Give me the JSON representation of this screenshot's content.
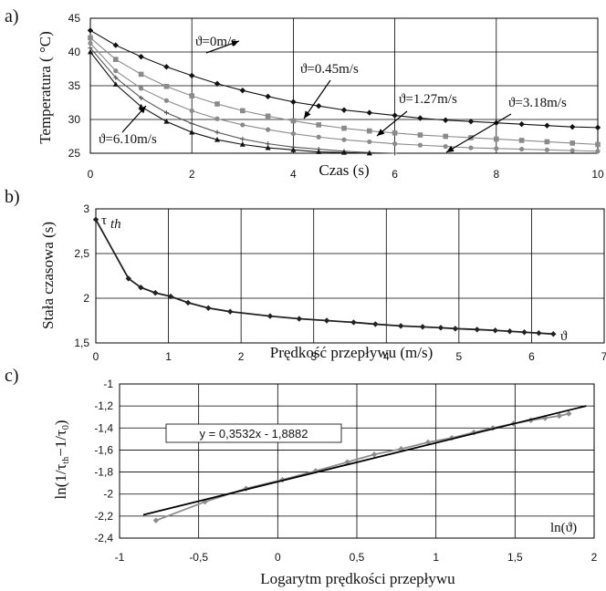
{
  "chart_data": [
    {
      "panel": "a)",
      "type": "line",
      "xlabel": "Czas (s)",
      "ylabel": "Temperatura ( °C)",
      "xlim": [
        0,
        10
      ],
      "ylim": [
        25,
        45
      ],
      "x_ticks": [
        "0",
        "2",
        "4",
        "6",
        "8",
        "10"
      ],
      "y_ticks": [
        "25",
        "30",
        "35",
        "40",
        "45"
      ],
      "grid": true,
      "series": [
        {
          "name": "ϑ=0m/s",
          "x": [
            0,
            0.5,
            1,
            1.5,
            2,
            2.5,
            3,
            3.5,
            4,
            4.5,
            5,
            5.5,
            6,
            6.5,
            7,
            7.5,
            8,
            8.5,
            9,
            9.5,
            10
          ],
          "y": [
            43.2,
            41.0,
            39.3,
            37.8,
            36.5,
            35.3,
            34.3,
            33.4,
            32.6,
            32.0,
            31.4,
            31.0,
            30.6,
            30.2,
            29.9,
            29.7,
            29.5,
            29.3,
            29.1,
            28.9,
            28.8
          ],
          "color": "#111111",
          "marker": "diamond"
        },
        {
          "name": "ϑ=0.45m/s",
          "x": [
            0,
            0.5,
            1,
            1.5,
            2,
            2.5,
            3,
            3.5,
            4,
            4.5,
            5,
            5.5,
            6,
            6.5,
            7,
            7.5,
            8,
            8.5,
            9,
            9.5,
            10
          ],
          "y": [
            42.1,
            38.9,
            36.7,
            34.9,
            33.5,
            32.3,
            31.3,
            30.5,
            29.8,
            29.2,
            28.7,
            28.3,
            28.0,
            27.7,
            27.5,
            27.3,
            27.1,
            26.9,
            26.7,
            26.5,
            26.3
          ],
          "color": "#8a8a8a",
          "marker": "square"
        },
        {
          "name": "ϑ=1.27m/s",
          "x": [
            0,
            0.5,
            1,
            1.5,
            2,
            2.5,
            3,
            3.5,
            4,
            4.5,
            5,
            5.5,
            6,
            6.5,
            7,
            7.5,
            8,
            8.5,
            9,
            9.5,
            10
          ],
          "y": [
            41.3,
            37.2,
            34.6,
            32.8,
            31.3,
            30.1,
            29.2,
            28.5,
            27.9,
            27.4,
            27.0,
            26.7,
            26.4,
            26.2,
            26.0,
            25.8,
            25.7,
            25.6,
            25.5,
            25.4,
            25.3
          ],
          "color": "#8a8a8a",
          "marker": "circle"
        },
        {
          "name": "ϑ=3.18m/s",
          "x": [
            0,
            0.5,
            1,
            1.5,
            2,
            2.5,
            3,
            3.5,
            4,
            4.5,
            5,
            5.5,
            6
          ],
          "y": [
            40.6,
            36.2,
            33.2,
            31.0,
            29.4,
            28.1,
            27.1,
            26.4,
            25.9,
            25.6,
            25.3,
            25.1,
            25.0
          ],
          "color": "#555555",
          "marker": "plus"
        },
        {
          "name": "ϑ=6.10m/s",
          "x": [
            0,
            0.5,
            1,
            1.5,
            2,
            2.5,
            3,
            3.5,
            4,
            4.5,
            5,
            5.5
          ],
          "y": [
            40.0,
            35.2,
            31.9,
            29.7,
            28.1,
            27.0,
            26.3,
            25.8,
            25.5,
            25.2,
            25.1,
            25.0
          ],
          "color": "#111111",
          "marker": "triangle"
        }
      ]
    },
    {
      "panel": "b)",
      "type": "line",
      "xlabel": "Prędkość przepływu (m/s)",
      "ylabel": "Stała czasowa (s)",
      "xlim": [
        0,
        7
      ],
      "ylim": [
        1.5,
        3
      ],
      "x_ticks": [
        "0",
        "1",
        "2",
        "3",
        "4",
        "5",
        "6",
        "7"
      ],
      "y_ticks": [
        "1,5",
        "2",
        "2,5",
        "3"
      ],
      "grid": true,
      "annotations": [
        "τ",
        "th",
        "ϑ"
      ],
      "series": [
        {
          "x": [
            0,
            0.45,
            0.62,
            0.82,
            1.03,
            1.27,
            1.55,
            1.85,
            2.4,
            2.8,
            3.18,
            3.55,
            3.85,
            4.2,
            4.5,
            4.75,
            4.95,
            5.25,
            5.5,
            5.7,
            5.9,
            6.1,
            6.3
          ],
          "y": [
            2.88,
            2.22,
            2.12,
            2.06,
            2.02,
            1.95,
            1.89,
            1.85,
            1.8,
            1.77,
            1.75,
            1.73,
            1.71,
            1.69,
            1.68,
            1.67,
            1.66,
            1.65,
            1.64,
            1.63,
            1.62,
            1.61,
            1.6
          ],
          "color": "#222222",
          "marker": "diamond"
        }
      ]
    },
    {
      "panel": "c)",
      "type": "scatter",
      "xlabel": "Logarytm prędkości przepływu",
      "ylabel_parts": [
        "ln(1/τ",
        "th",
        "−1/τ",
        "0",
        ")"
      ],
      "xlim": [
        -1,
        2
      ],
      "ylim": [
        -2.4,
        -1
      ],
      "x_ticks": [
        "-1",
        "-0,5",
        "0",
        "0,5",
        "1",
        "1,5",
        "2"
      ],
      "y_ticks": [
        "-2,4",
        "-2,2",
        "-2",
        "-1,8",
        "-1,6",
        "-1,4",
        "-1,2",
        "-1"
      ],
      "grid": true,
      "annotation": "ln(ϑ)",
      "fit": {
        "equation": "y = 0,3532x - 1,8882",
        "slope": 0.3532,
        "intercept": -1.8882,
        "x_range": [
          -0.85,
          1.95
        ]
      },
      "series": [
        {
          "x": [
            -0.77,
            -0.46,
            -0.2,
            0.03,
            0.24,
            0.44,
            0.61,
            0.78,
            0.95,
            1.1,
            1.24,
            1.36,
            1.49,
            1.6,
            1.69,
            1.78,
            1.84
          ],
          "y": [
            -2.24,
            -2.07,
            -1.95,
            -1.87,
            -1.79,
            -1.71,
            -1.64,
            -1.59,
            -1.53,
            -1.49,
            -1.44,
            -1.4,
            -1.36,
            -1.33,
            -1.31,
            -1.29,
            -1.27
          ],
          "color": "#8c8c8c",
          "marker": "diamond"
        }
      ]
    }
  ]
}
